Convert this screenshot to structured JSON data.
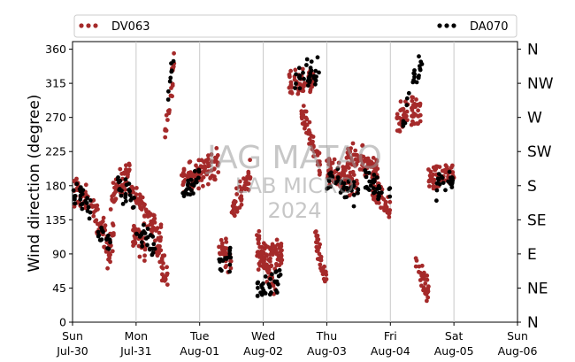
{
  "chart_data": {
    "type": "scatter",
    "ylabel": "Wind direction (degree)",
    "ylim": [
      0,
      370
    ],
    "yticks": [
      0,
      45,
      90,
      135,
      180,
      225,
      270,
      315,
      360
    ],
    "compass": [
      {
        "deg": 0,
        "label": "N"
      },
      {
        "deg": 45,
        "label": "NE"
      },
      {
        "deg": 90,
        "label": "E"
      },
      {
        "deg": 135,
        "label": "SE"
      },
      {
        "deg": 180,
        "label": "S"
      },
      {
        "deg": 225,
        "label": "SW"
      },
      {
        "deg": 270,
        "label": "W"
      },
      {
        "deg": 315,
        "label": "NW"
      },
      {
        "deg": 360,
        "label": "N"
      }
    ],
    "xlim": [
      "2023-07-30",
      "2023-08-06"
    ],
    "xticks": [
      {
        "day": "Sun",
        "date": "Jul-30"
      },
      {
        "day": "Mon",
        "date": "Jul-31"
      },
      {
        "day": "Tue",
        "date": "Aug-01"
      },
      {
        "day": "Wed",
        "date": "Aug-02"
      },
      {
        "day": "Thu",
        "date": "Aug-03"
      },
      {
        "day": "Fri",
        "date": "Aug-04"
      },
      {
        "day": "Sat",
        "date": "Aug-05"
      },
      {
        "day": "Sun",
        "date": "Aug-06"
      }
    ],
    "grid": "vertical",
    "legend_position": "top",
    "watermark": [
      "JAG MATAO",
      "LAB MICRO",
      "2024"
    ],
    "series": [
      {
        "name": "DV063",
        "color": "#a52a2a",
        "segments": [
          {
            "day": [
              0.0,
              0.3
            ],
            "deg": [
              175,
              155
            ]
          },
          {
            "day": [
              0.3,
              0.6
            ],
            "deg": [
              150,
              100
            ]
          },
          {
            "day": [
              0.55,
              0.65
            ],
            "deg": [
              80,
              120
            ]
          },
          {
            "day": [
              0.6,
              0.9
            ],
            "deg": [
              160,
              200
            ]
          },
          {
            "day": [
              0.9,
              1.1
            ],
            "deg": [
              180,
              150
            ]
          },
          {
            "day": [
              0.95,
              1.15
            ],
            "deg": [
              120,
              100
            ]
          },
          {
            "day": [
              1.1,
              1.4
            ],
            "deg": [
              150,
              110
            ]
          },
          {
            "day": [
              1.3,
              1.5
            ],
            "deg": [
              100,
              60
            ]
          },
          {
            "day": [
              1.45,
              1.6
            ],
            "deg": [
              250,
              340
            ]
          },
          {
            "day": [
              1.7,
              2.1
            ],
            "deg": [
              190,
              200
            ]
          },
          {
            "day": [
              2.1,
              2.3
            ],
            "deg": [
              200,
              210
            ]
          },
          {
            "day": [
              2.3,
              2.5
            ],
            "deg": [
              100,
              80
            ]
          },
          {
            "day": [
              2.5,
              2.8
            ],
            "deg": [
              140,
              200
            ]
          },
          {
            "day": [
              2.9,
              3.2
            ],
            "deg": [
              110,
              40
            ]
          },
          {
            "day": [
              2.9,
              3.3
            ],
            "deg": [
              80,
              90
            ]
          },
          {
            "day": [
              3.4,
              3.8
            ],
            "deg": [
              310,
              320
            ]
          },
          {
            "day": [
              3.6,
              3.9
            ],
            "deg": [
              280,
              200
            ]
          },
          {
            "day": [
              3.8,
              4.0
            ],
            "deg": [
              120,
              50
            ]
          },
          {
            "day": [
              4.0,
              4.5
            ],
            "deg": [
              200,
              180
            ]
          },
          {
            "day": [
              4.3,
              4.8
            ],
            "deg": [
              220,
              200
            ]
          },
          {
            "day": [
              4.7,
              5.0
            ],
            "deg": [
              180,
              150
            ]
          },
          {
            "day": [
              5.1,
              5.5
            ],
            "deg": [
              270,
              280
            ]
          },
          {
            "day": [
              5.4,
              5.6
            ],
            "deg": [
              80,
              40
            ]
          },
          {
            "day": [
              5.6,
              6.0
            ],
            "deg": [
              190,
              200
            ]
          }
        ]
      },
      {
        "name": "DA070",
        "color": "#000000",
        "segments": [
          {
            "day": [
              0.0,
              0.3
            ],
            "deg": [
              165,
              155
            ]
          },
          {
            "day": [
              0.4,
              0.6
            ],
            "deg": [
              120,
              100
            ]
          },
          {
            "day": [
              0.7,
              1.0
            ],
            "deg": [
              180,
              160
            ]
          },
          {
            "day": [
              1.0,
              1.3
            ],
            "deg": [
              120,
              100
            ]
          },
          {
            "day": [
              1.5,
              1.6
            ],
            "deg": [
              290,
              350
            ]
          },
          {
            "day": [
              1.7,
              2.0
            ],
            "deg": [
              175,
              190
            ]
          },
          {
            "day": [
              2.3,
              2.5
            ],
            "deg": [
              75,
              90
            ]
          },
          {
            "day": [
              2.9,
              3.3
            ],
            "deg": [
              40,
              60
            ]
          },
          {
            "day": [
              3.5,
              3.9
            ],
            "deg": [
              320,
              330
            ]
          },
          {
            "day": [
              4.0,
              4.5
            ],
            "deg": [
              185,
              175
            ]
          },
          {
            "day": [
              4.6,
              5.0
            ],
            "deg": [
              190,
              170
            ]
          },
          {
            "day": [
              5.2,
              5.5
            ],
            "deg": [
              270,
              350
            ]
          },
          {
            "day": [
              5.7,
              6.0
            ],
            "deg": [
              180,
              185
            ]
          }
        ]
      }
    ]
  }
}
